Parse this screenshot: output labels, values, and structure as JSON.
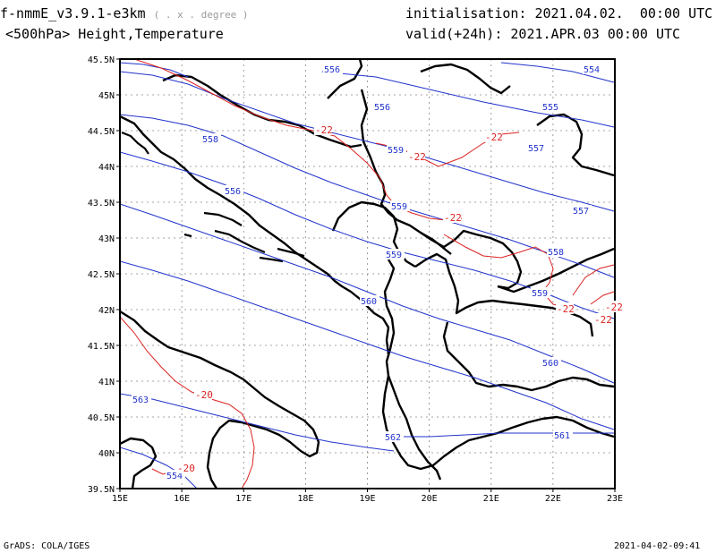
{
  "header": {
    "model": "f-nmmE_v3.9.1-e3km",
    "proj_note": "( . x . degree )",
    "level": "<500hPa>",
    "fields": "Height,Temperature",
    "init_label": "initialisation:",
    "init_value": "2021.04.02.  00:00 UTC",
    "valid_label": "valid(+24h):",
    "valid_value": "2021.APR.03 00:00 UTC"
  },
  "footer": {
    "left": "GrADS: COLA/IGES",
    "right": "2021-04-02-09:41"
  },
  "map": {
    "lon_ticks": [
      "15E",
      "16E",
      "17E",
      "18E",
      "19E",
      "20E",
      "21E",
      "22E",
      "23E"
    ],
    "lat_ticks": [
      "45.5N",
      "45N",
      "44.5N",
      "44N",
      "43.5N",
      "43N",
      "42.5N",
      "42N",
      "41.5N",
      "41N",
      "40.5N",
      "40N",
      "39.5N"
    ],
    "height_color": "#2233cc",
    "temp_color": "#dd2222",
    "height_labels": [
      "556",
      "554",
      "556",
      "555",
      "558",
      "557",
      "556",
      "559",
      "559",
      "557",
      "559",
      "558",
      "559",
      "560",
      "560",
      "563",
      "562",
      "561",
      "554"
    ],
    "temp_labels": [
      "-22",
      "-22",
      "-22",
      "-22",
      "-22",
      "-22",
      "-22",
      "-20",
      "-20"
    ]
  }
}
